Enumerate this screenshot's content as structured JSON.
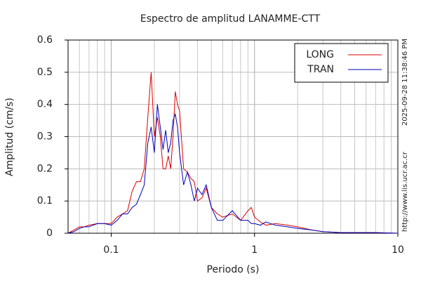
{
  "chart_data": {
    "type": "line",
    "title": "Espectro de amplitud LANAMME-CTT",
    "x_label": "Periodo (s)",
    "y_label": "Amplitud (cm/s)",
    "side_texts": [
      "2025-09-28 11:38:46 PM",
      "http://www.lis.ucr.ac.cr"
    ],
    "xscale": "log",
    "grid": true,
    "legend_position": "upper right",
    "xlim": [
      0.05,
      10
    ],
    "xticks": [
      0.1,
      1,
      10
    ],
    "x_minor_ticks": [
      0.05,
      0.06,
      0.07,
      0.08,
      0.09,
      0.2,
      0.3,
      0.4,
      0.5,
      0.6,
      0.7,
      0.8,
      0.9,
      2,
      3,
      4,
      5,
      6,
      7,
      8,
      9
    ],
    "ylim": [
      0,
      0.6
    ],
    "yticks": [
      0,
      0.1,
      0.2,
      0.3,
      0.4,
      0.5,
      0.6
    ],
    "x": [
      0.05,
      0.055,
      0.06,
      0.065,
      0.07,
      0.08,
      0.09,
      0.1,
      0.11,
      0.12,
      0.13,
      0.14,
      0.15,
      0.16,
      0.17,
      0.18,
      0.19,
      0.2,
      0.21,
      0.22,
      0.23,
      0.24,
      0.25,
      0.26,
      0.27,
      0.28,
      0.29,
      0.3,
      0.32,
      0.34,
      0.36,
      0.38,
      0.4,
      0.43,
      0.46,
      0.5,
      0.55,
      0.6,
      0.7,
      0.8,
      0.9,
      0.95,
      1.0,
      1.1,
      1.2,
      1.4,
      1.7,
      2,
      2.5,
      3,
      4,
      5,
      7,
      10
    ],
    "series": [
      {
        "name": "LONG",
        "color": "#dd0000",
        "values": [
          0,
          0.01,
          0.02,
          0.02,
          0.025,
          0.03,
          0.03,
          0.03,
          0.05,
          0.06,
          0.07,
          0.13,
          0.16,
          0.16,
          0.2,
          0.36,
          0.5,
          0.3,
          0.36,
          0.3,
          0.2,
          0.2,
          0.24,
          0.2,
          0.3,
          0.44,
          0.4,
          0.38,
          0.2,
          0.19,
          0.17,
          0.16,
          0.1,
          0.11,
          0.14,
          0.08,
          0.06,
          0.05,
          0.06,
          0.04,
          0.07,
          0.08,
          0.05,
          0.035,
          0.025,
          0.03,
          0.025,
          0.02,
          0.01,
          0.005,
          0.002,
          0.002,
          0.002,
          0
        ]
      },
      {
        "name": "TRAN",
        "color": "#0000bb",
        "values": [
          0,
          0.005,
          0.015,
          0.02,
          0.02,
          0.03,
          0.03,
          0.025,
          0.04,
          0.06,
          0.06,
          0.08,
          0.09,
          0.12,
          0.15,
          0.28,
          0.33,
          0.25,
          0.4,
          0.33,
          0.26,
          0.32,
          0.25,
          0.28,
          0.35,
          0.37,
          0.33,
          0.25,
          0.15,
          0.19,
          0.15,
          0.1,
          0.14,
          0.12,
          0.15,
          0.08,
          0.04,
          0.04,
          0.07,
          0.04,
          0.04,
          0.03,
          0.03,
          0.025,
          0.035,
          0.025,
          0.02,
          0.015,
          0.01,
          0.005,
          0.002,
          0.002,
          0.002,
          0
        ]
      }
    ]
  }
}
